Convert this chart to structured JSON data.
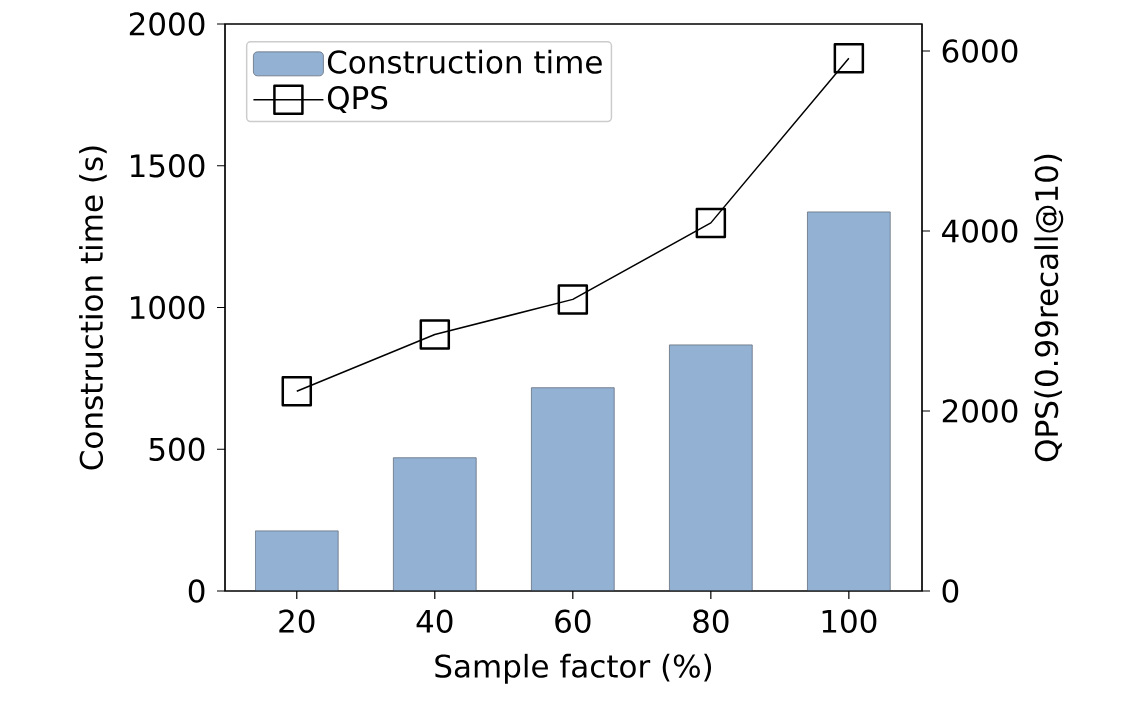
{
  "chart_data": {
    "type": "bar",
    "xlabel": "Sample factor (%)",
    "ylabel": "Construction time (s)",
    "y2label": "QPS(0.99recall@10)",
    "categories": [
      "20",
      "40",
      "60",
      "80",
      "100"
    ],
    "series": [
      {
        "name": "Construction time",
        "color": "#92b1d3",
        "values": [
          212,
          470,
          717,
          868,
          1337
        ]
      },
      {
        "name": "QPS",
        "type": "line",
        "axis": "y2",
        "color": "#000000",
        "marker": "square",
        "line_style": "solid",
        "values": [
          2220,
          2850,
          3240,
          4090,
          5920
        ]
      }
    ],
    "ylim": [
      0,
      2000
    ],
    "yticks": [
      0,
      500,
      1000,
      1500,
      2000
    ],
    "y2lim": [
      0,
      6300
    ],
    "y2ticks": [
      0,
      2000,
      4000,
      6000
    ],
    "legend": "top left",
    "grid": false
  }
}
